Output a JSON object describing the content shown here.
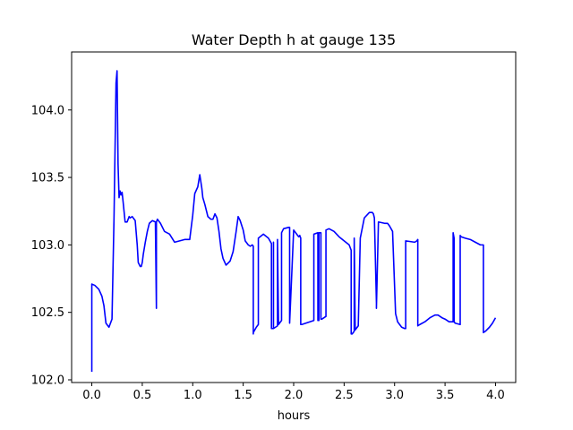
{
  "chart_data": {
    "type": "line",
    "title": "Water Depth h at gauge 135",
    "xlabel": "hours",
    "ylabel": "",
    "xlim": [
      -0.2,
      4.2
    ],
    "ylim": [
      101.98,
      104.43
    ],
    "xticks": [
      0.0,
      0.5,
      1.0,
      1.5,
      2.0,
      2.5,
      3.0,
      3.5,
      4.0
    ],
    "xtick_labels": [
      "0.0",
      "0.5",
      "1.0",
      "1.5",
      "2.0",
      "2.5",
      "3.0",
      "3.5",
      "4.0"
    ],
    "yticks": [
      102.0,
      102.5,
      103.0,
      103.5,
      104.0
    ],
    "ytick_labels": [
      "102.0",
      "102.5",
      "103.0",
      "103.5",
      "104.0"
    ],
    "grid": false,
    "series": [
      {
        "color": "#0000ff",
        "x": [
          0.0,
          0.0,
          0.03,
          0.07,
          0.1,
          0.12,
          0.14,
          0.17,
          0.2,
          0.22,
          0.24,
          0.25,
          0.26,
          0.27,
          0.28,
          0.29,
          0.3,
          0.31,
          0.33,
          0.35,
          0.37,
          0.38,
          0.4,
          0.43,
          0.45,
          0.46,
          0.48,
          0.49,
          0.5,
          0.51,
          0.53,
          0.55,
          0.57,
          0.6,
          0.63,
          0.64,
          0.64,
          0.65,
          0.68,
          0.72,
          0.77,
          0.82,
          0.87,
          0.92,
          0.97,
          1.0,
          1.02,
          1.05,
          1.07,
          1.09,
          1.1,
          1.12,
          1.15,
          1.18,
          1.2,
          1.22,
          1.24,
          1.26,
          1.28,
          1.3,
          1.33,
          1.37,
          1.4,
          1.43,
          1.45,
          1.47,
          1.5,
          1.52,
          1.55,
          1.57,
          1.59,
          1.6,
          1.6,
          1.6,
          1.63,
          1.65,
          1.65,
          1.7,
          1.75,
          1.78,
          1.78,
          1.79,
          1.8,
          1.8,
          1.8,
          1.84,
          1.84,
          1.85,
          1.88,
          1.88,
          1.9,
          1.95,
          1.96,
          1.96,
          2.0,
          2.05,
          2.06,
          2.07,
          2.07,
          2.08,
          2.2,
          2.2,
          2.24,
          2.24,
          2.25,
          2.25,
          2.27,
          2.27,
          2.28,
          2.32,
          2.32,
          2.35,
          2.4,
          2.45,
          2.5,
          2.55,
          2.57,
          2.57,
          2.58,
          2.6,
          2.6,
          2.61,
          2.64,
          2.66,
          2.7,
          2.75,
          2.78,
          2.79,
          2.8,
          2.82,
          2.82,
          2.84,
          2.9,
          2.93,
          2.95,
          2.98,
          3.01,
          3.03,
          3.05,
          3.07,
          3.1,
          3.11,
          3.11,
          3.2,
          3.22,
          3.23,
          3.23,
          3.25,
          3.3,
          3.35,
          3.4,
          3.43,
          3.47,
          3.5,
          3.54,
          3.58,
          3.58,
          3.59,
          3.59,
          3.6,
          3.65,
          3.65,
          3.66,
          3.7,
          3.75,
          3.8,
          3.85,
          3.88,
          3.88,
          3.9,
          3.94,
          3.97,
          4.0
        ],
        "y": [
          102.06,
          102.71,
          102.7,
          102.67,
          102.62,
          102.55,
          102.42,
          102.39,
          102.45,
          103.2,
          104.2,
          104.29,
          103.6,
          103.35,
          103.4,
          103.37,
          103.39,
          103.32,
          103.17,
          103.17,
          103.21,
          103.2,
          103.21,
          103.18,
          103.0,
          102.87,
          102.84,
          102.84,
          102.87,
          102.93,
          103.02,
          103.1,
          103.16,
          103.18,
          103.17,
          102.53,
          103.17,
          103.19,
          103.16,
          103.1,
          103.08,
          103.02,
          103.03,
          103.04,
          103.04,
          103.22,
          103.38,
          103.43,
          103.52,
          103.42,
          103.35,
          103.3,
          103.21,
          103.19,
          103.19,
          103.23,
          103.2,
          103.1,
          102.97,
          102.9,
          102.85,
          102.88,
          102.95,
          103.1,
          103.21,
          103.18,
          103.11,
          103.03,
          103.0,
          102.99,
          103.0,
          102.99,
          102.34,
          102.35,
          102.39,
          102.41,
          103.05,
          103.08,
          103.05,
          103.01,
          102.38,
          102.38,
          102.38,
          103.02,
          102.38,
          102.4,
          103.04,
          102.41,
          102.44,
          103.09,
          103.12,
          103.13,
          103.13,
          102.42,
          103.11,
          103.06,
          103.07,
          103.05,
          102.41,
          102.41,
          102.44,
          103.08,
          103.09,
          102.44,
          102.44,
          103.09,
          103.09,
          102.45,
          102.45,
          102.47,
          103.11,
          103.12,
          103.1,
          103.06,
          103.03,
          103.0,
          102.96,
          102.34,
          102.34,
          102.36,
          103.05,
          102.37,
          102.4,
          103.05,
          103.2,
          103.24,
          103.24,
          103.23,
          103.2,
          102.57,
          102.53,
          103.17,
          103.16,
          103.16,
          103.14,
          103.1,
          102.49,
          102.43,
          102.41,
          102.39,
          102.38,
          102.38,
          103.03,
          103.02,
          103.03,
          103.04,
          102.4,
          102.41,
          102.43,
          102.46,
          102.48,
          102.48,
          102.46,
          102.45,
          102.43,
          102.43,
          103.09,
          103.05,
          102.43,
          102.42,
          102.41,
          103.07,
          103.06,
          103.05,
          103.04,
          103.02,
          103.0,
          103.0,
          102.35,
          102.36,
          102.39,
          102.42,
          102.46
        ]
      }
    ]
  }
}
